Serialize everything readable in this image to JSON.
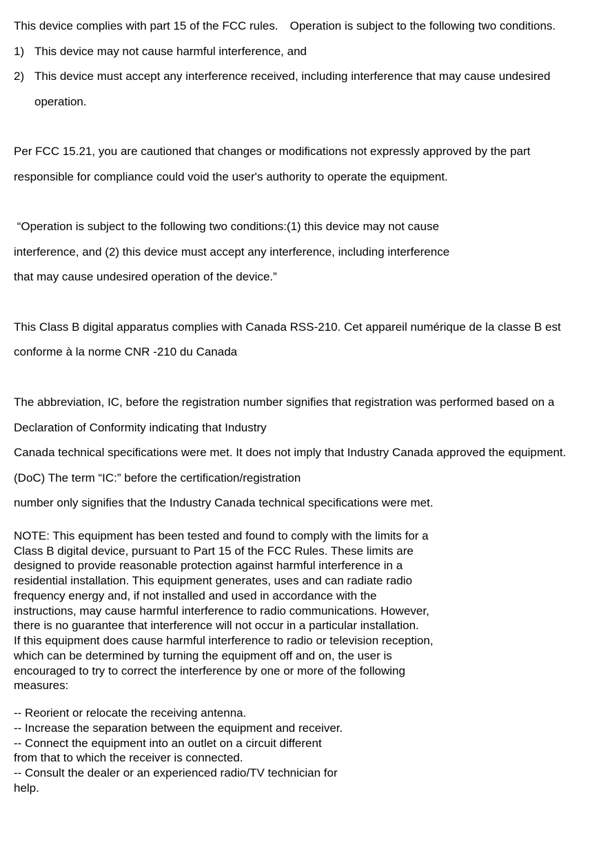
{
  "doc": {
    "intro": "This device complies with part 15 of the FCC rules. Operation is subject to the following two conditions.",
    "item1_num": "1)",
    "item1": "This device may not cause harmful interference, and",
    "item2_num": "2)",
    "item2": "This device must accept any interference received, including interference that may cause undesired operation.",
    "fcc1521": "Per FCC 15.21, you are cautioned that changes or modifications not expressly approved by the part responsible for compliance could void the user's authority to operate the equipment.",
    "quote_l1": " “Operation is subject to the following two conditions:(1) this device may not cause",
    "quote_l2": "interference, and (2) this device must accept any interference, including interference",
    "quote_l3": "that may cause undesired operation of the device.”",
    "classB": "This Class B digital apparatus complies with Canada RSS-210. Cet appareil numérique de la classe B est conforme à la norme CNR -210 du Canada",
    "ic_l1": "The abbreviation, IC, before the registration number signifies that registration was performed based on a Declaration of Conformity indicating that Industry",
    "ic_l2": "Canada technical specifications were met. It does not imply that Industry Canada approved the equipment.(DoC) The term “IC:” before the certification/registration",
    "ic_l3": "number only signifies that the Industry Canada technical specifications were met.",
    "note_l1": "NOTE: This equipment has been tested and found to comply with the limits for a",
    "note_l2": "Class B digital device, pursuant to Part 15 of the FCC Rules. These limits are",
    "note_l3": "designed to provide reasonable protection against harmful interference in a",
    "note_l4": "residential installation. This equipment generates, uses and can radiate radio",
    "note_l5": "frequency energy and, if not installed and used in accordance with the",
    "note_l6": "instructions, may cause harmful interference to radio communications. However,",
    "note_l7": "there is no guarantee that interference will not occur in a particular installation.",
    "note_l8": "If this equipment does cause harmful interference to radio or television reception,",
    "note_l9": "which can be determined by turning the equipment off and on, the user is",
    "note_l10": "encouraged to try to correct the interference by one or more of the following",
    "note_l11": "measures:",
    "meas_l1": "-- Reorient or relocate the receiving antenna.",
    "meas_l2": "-- Increase the separation between the equipment and receiver.",
    "meas_l3": "-- Connect the equipment into an outlet on a circuit different",
    "meas_l4": "from that to which the receiver is connected.",
    "meas_l5": "-- Consult the dealer or an experienced radio/TV technician for",
    "meas_l6": "help."
  }
}
